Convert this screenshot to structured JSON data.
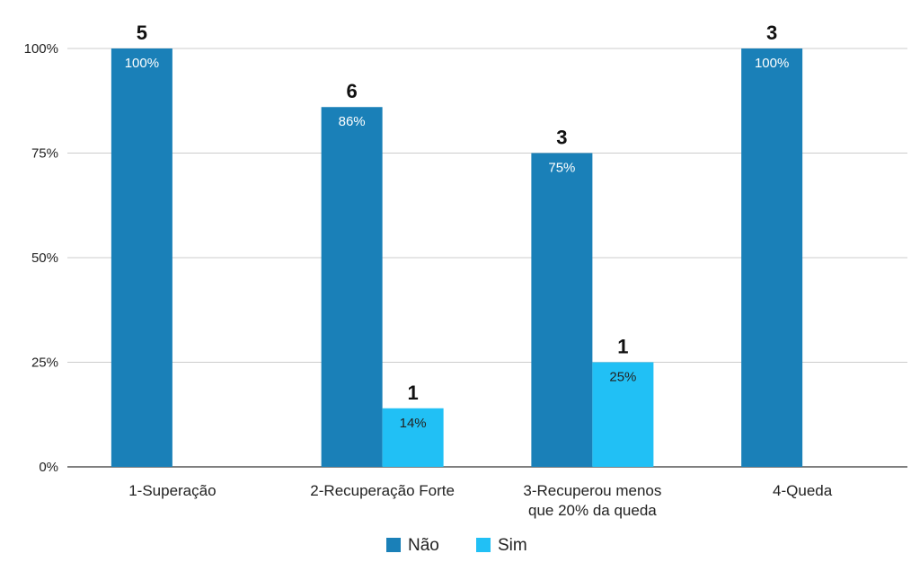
{
  "chart_data": {
    "type": "bar",
    "categories": [
      [
        "1-Superação"
      ],
      [
        "2-Recuperação Forte"
      ],
      [
        "3-Recuperou menos",
        "que 20% da queda"
      ],
      [
        "4-Queda"
      ]
    ],
    "series": [
      {
        "name": "Não",
        "color": "#1a80b8",
        "label_color": "#ffffff",
        "values": [
          100,
          86,
          75,
          100
        ],
        "inner_labels": [
          "100%",
          "86%",
          "75%",
          "100%"
        ],
        "count_labels": [
          "5",
          "6",
          "3",
          "3"
        ]
      },
      {
        "name": "Sim",
        "color": "#21c0f5",
        "label_color": "#222222",
        "values": [
          null,
          14,
          25,
          null
        ],
        "inner_labels": [
          null,
          "14%",
          "25%",
          null
        ],
        "count_labels": [
          null,
          "1",
          "1",
          null
        ]
      }
    ],
    "y_ticks": [
      0,
      25,
      50,
      75,
      100
    ],
    "y_tick_labels": [
      "0%",
      "25%",
      "50%",
      "75%",
      "100%"
    ],
    "ylim": [
      0,
      100
    ],
    "grid": true,
    "legend": "bottom-center"
  }
}
